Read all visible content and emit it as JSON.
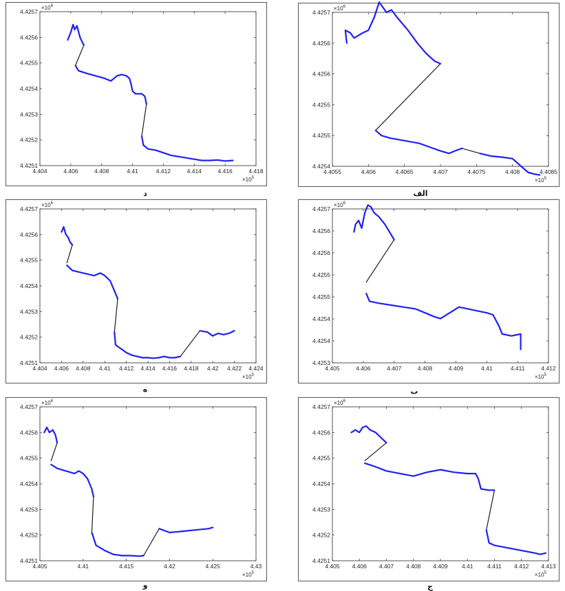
{
  "colors": {
    "track": "#1f1ff0",
    "gap": "#1a1a1a"
  },
  "panels": [
    {
      "caption": "الف",
      "x_exponent": "×10^5",
      "y_exponent": "×10^6",
      "x_ticks": [
        "4.4055",
        "4.406",
        "4.4065",
        "4.407",
        "4.4075",
        "4.408",
        "4.4085"
      ],
      "y_ticks": [
        "4.4254",
        "4.4255",
        "4.4255",
        "4.4256",
        "4.4256",
        "4.4257"
      ]
    },
    {
      "caption": "د",
      "x_exponent": "×10^5",
      "y_exponent": "×10^6",
      "x_ticks": [
        "4.404",
        "4.406",
        "4.408",
        "4.41",
        "4.412",
        "4.414",
        "4.416",
        "4.418"
      ],
      "y_ticks": [
        "4.4251",
        "4.4252",
        "4.4253",
        "4.4254",
        "4.4255",
        "4.4256",
        "4.4257"
      ]
    },
    {
      "caption": "ب",
      "x_exponent": "×10^5",
      "y_exponent": "×10^6",
      "x_ticks": [
        "4.405",
        "4.406",
        "4.407",
        "4.408",
        "4.409",
        "4.41",
        "4.411",
        "4.412"
      ],
      "y_ticks": [
        "4.4253",
        "4.4254",
        "4.4254",
        "4.4255",
        "4.4255",
        "4.4256",
        "4.4256",
        "4.4257"
      ]
    },
    {
      "caption": "ه",
      "x_exponent": "×10^5",
      "y_exponent": "×10^6",
      "x_ticks": [
        "4.404",
        "4.406",
        "4.408",
        "4.41",
        "4.412",
        "4.414",
        "4.416",
        "4.418",
        "4.42",
        "4.422",
        "4.424"
      ],
      "y_ticks": [
        "4.4251",
        "4.4252",
        "4.4253",
        "4.4254",
        "4.4255",
        "4.4256",
        "4.4257"
      ]
    },
    {
      "caption": "ج",
      "x_exponent": "×10^5",
      "y_exponent": "×10^6",
      "x_ticks": [
        "4.405",
        "4.406",
        "4.407",
        "4.408",
        "4.409",
        "4.41",
        "4.411",
        "4.412",
        "4.413"
      ],
      "y_ticks": [
        "4.4251",
        "4.4252",
        "4.4253",
        "4.4254",
        "4.4255",
        "4.4256",
        "4.4257"
      ]
    },
    {
      "caption": "و",
      "x_exponent": "×10^5",
      "y_exponent": "×10^6",
      "x_ticks": [
        "4.405",
        "4.41",
        "4.415",
        "4.42",
        "4.425",
        "4.43"
      ],
      "y_ticks": [
        "4.4251",
        "4.4252",
        "4.4253",
        "4.4254",
        "4.4255",
        "4.4256",
        "4.4257"
      ]
    }
  ],
  "chart_data": [
    {
      "type": "line",
      "panel_caption": "الف",
      "xlim": [
        4.4055,
        4.4085
      ],
      "ylim": [
        4.4254,
        4.4257
      ],
      "scale_x": 100000.0,
      "scale_y": 1000000.0,
      "series": [
        {
          "segments": [
            {
              "kind": "track",
              "x": [
                4.4057,
                4.40568,
                4.40575,
                4.4058,
                4.40592,
                4.406,
                4.40608,
                4.40615,
                4.4062,
                4.40625,
                4.40632,
                4.4064,
                4.40655,
                4.40668,
                4.4068,
                4.40692,
                4.407
              ],
              "y": [
                4.42564,
                4.425665,
                4.42566,
                4.42565,
                4.42566,
                4.425665,
                4.42569,
                4.42572,
                4.42571,
                4.4257,
                4.425705,
                4.42569,
                4.425665,
                4.42564,
                4.42562,
                4.425605,
                4.4256
              ]
            },
            {
              "kind": "gap",
              "x": [
                4.407,
                4.4061
              ],
              "y": [
                4.4256,
                4.42547
              ]
            },
            {
              "kind": "track",
              "x": [
                4.4061,
                4.40618,
                4.4063,
                4.4065,
                4.4067,
                4.4069,
                4.407,
                4.40712,
                4.4072,
                4.4073
              ],
              "y": [
                4.42547,
                4.42546,
                4.425455,
                4.42545,
                4.425445,
                4.425435,
                4.42543,
                4.425425,
                4.42543,
                4.425435
              ]
            },
            {
              "kind": "gap",
              "x": [
                4.4073,
                4.40755
              ],
              "y": [
                4.425435,
                4.425425
              ]
            },
            {
              "kind": "track",
              "x": [
                4.40755,
                4.4077,
                4.40785,
                4.408,
                4.40812,
                4.40822,
                4.4083,
                4.40838
              ],
              "y": [
                4.425425,
                4.42542,
                4.425418,
                4.425415,
                4.4254,
                4.425388,
                4.425385,
                4.425383
              ]
            }
          ]
        }
      ]
    },
    {
      "type": "line",
      "panel_caption": "د",
      "xlim": [
        4.404,
        4.418
      ],
      "ylim": [
        4.4251,
        4.4257
      ],
      "scale_x": 100000.0,
      "scale_y": 1000000.0,
      "series": [
        {
          "segments": [
            {
              "kind": "track",
              "x": [
                4.4058,
                4.406,
                4.40615,
                4.40625,
                4.4064,
                4.4066,
                4.40675,
                4.40685
              ],
              "y": [
                4.42559,
                4.42562,
                4.42565,
                4.42563,
                4.425645,
                4.4256,
                4.42558,
                4.42557
              ]
            },
            {
              "kind": "gap",
              "x": [
                4.40685,
                4.4063
              ],
              "y": [
                4.42557,
                4.42549
              ]
            },
            {
              "kind": "track",
              "x": [
                4.4063,
                4.4065,
                4.407,
                4.4076,
                4.4082,
                4.4086,
                4.409,
                4.4093,
                4.4096,
                4.4098,
                4.4099,
                4.41,
                4.4102,
                4.4106,
                4.4108,
                4.4109
              ],
              "y": [
                4.42549,
                4.42547,
                4.42546,
                4.42545,
                4.42544,
                4.42543,
                4.42545,
                4.425455,
                4.42545,
                4.42544,
                4.42542,
                4.42539,
                4.42538,
                4.42538,
                4.42537,
                4.42534
              ]
            },
            {
              "kind": "gap",
              "x": [
                4.4109,
                4.4106
              ],
              "y": [
                4.42534,
                4.425215
              ]
            },
            {
              "kind": "track",
              "x": [
                4.4106,
                4.4107,
                4.411,
                4.4115,
                4.412,
                4.4125,
                4.413,
                4.4135,
                4.414,
                4.4145,
                4.415,
                4.4155,
                4.416,
                4.4165
              ],
              "y": [
                4.425215,
                4.42518,
                4.425165,
                4.42516,
                4.42515,
                4.42514,
                4.425135,
                4.42513,
                4.425125,
                4.42512,
                4.42512,
                4.425122,
                4.425118,
                4.42512
              ]
            }
          ]
        }
      ]
    },
    {
      "type": "line",
      "panel_caption": "ب",
      "xlim": [
        4.405,
        4.412
      ],
      "ylim": [
        4.4253,
        4.4257
      ],
      "scale_x": 100000.0,
      "scale_y": 1000000.0,
      "series": [
        {
          "segments": [
            {
              "kind": "track",
              "x": [
                4.4057,
                4.40575,
                4.40585,
                4.40595,
                4.40605,
                4.40615,
                4.40625,
                4.40635,
                4.4065,
                4.4067,
                4.40685,
                4.407
              ],
              "y": [
                4.42564,
                4.42566,
                4.42567,
                4.42565,
                4.42569,
                4.42571,
                4.425705,
                4.42569,
                4.42568,
                4.42566,
                4.42564,
                4.42562
              ]
            },
            {
              "kind": "gap",
              "x": [
                4.407,
                4.4061
              ],
              "y": [
                4.42562,
                4.42551
              ]
            },
            {
              "kind": "track",
              "x": [
                4.4061,
                4.4062,
                4.4065,
                4.4069,
                4.4073,
                4.4077,
                4.408,
                4.4083,
                4.4085,
                4.4088,
                4.4091,
                4.4094,
                4.4097,
                4.41,
                4.4102,
                4.4104,
                4.4105,
                4.4108,
                4.4111,
                4.4111
              ],
              "y": [
                4.42548,
                4.42546,
                4.425455,
                4.42545,
                4.425445,
                4.42544,
                4.42543,
                4.42542,
                4.425415,
                4.42543,
                4.425445,
                4.42544,
                4.425435,
                4.42543,
                4.425425,
                4.425395,
                4.425375,
                4.42537,
                4.425375,
                4.425335
              ]
            }
          ]
        }
      ]
    },
    {
      "type": "line",
      "panel_caption": "ه",
      "xlim": [
        4.404,
        4.424
      ],
      "ylim": [
        4.4251,
        4.4257
      ],
      "scale_x": 100000.0,
      "scale_y": 1000000.0,
      "series": [
        {
          "segments": [
            {
              "kind": "track",
              "x": [
                4.406,
                4.4062,
                4.4064,
                4.4066,
                4.4068,
                4.407
              ],
              "y": [
                4.42561,
                4.42563,
                4.4256,
                4.42559,
                4.42557,
                4.42556
              ]
            },
            {
              "kind": "gap",
              "x": [
                4.407,
                4.4065
              ],
              "y": [
                4.42556,
                4.42549
              ]
            },
            {
              "kind": "track",
              "x": [
                4.4065,
                4.407,
                4.408,
                4.409,
                4.4096,
                4.41,
                4.4105,
                4.4108,
                4.411,
                4.4112
              ],
              "y": [
                4.42548,
                4.42546,
                4.42545,
                4.42544,
                4.42545,
                4.42544,
                4.42542,
                4.42539,
                4.42537,
                4.42535
              ]
            },
            {
              "kind": "gap",
              "x": [
                4.4112,
                4.4109
              ],
              "y": [
                4.42535,
                4.42522
              ]
            },
            {
              "kind": "track",
              "x": [
                4.4109,
                4.411,
                4.4115,
                4.412,
                4.4125,
                4.413,
                4.4135,
                4.414,
                4.4145,
                4.415,
                4.4155,
                4.416,
                4.4165,
                4.417
              ],
              "y": [
                4.42522,
                4.42517,
                4.425155,
                4.42514,
                4.42513,
                4.425125,
                4.42512,
                4.42512,
                4.425118,
                4.42512,
                4.425125,
                4.42512,
                4.42512,
                4.425125
              ]
            },
            {
              "kind": "gap",
              "x": [
                4.417,
                4.4188
              ],
              "y": [
                4.425125,
                4.425225
              ]
            },
            {
              "kind": "track",
              "x": [
                4.4188,
                4.4195,
                4.42,
                4.4205,
                4.421,
                4.4215,
                4.422
              ],
              "y": [
                4.425225,
                4.42522,
                4.425205,
                4.425215,
                4.42521,
                4.425215,
                4.425225
              ]
            }
          ]
        }
      ]
    },
    {
      "type": "line",
      "panel_caption": "ج",
      "xlim": [
        4.405,
        4.413
      ],
      "ylim": [
        4.4251,
        4.4257
      ],
      "scale_x": 100000.0,
      "scale_y": 1000000.0,
      "series": [
        {
          "segments": [
            {
              "kind": "track",
              "x": [
                4.4057,
                4.40585,
                4.406,
                4.40612,
                4.40625,
                4.4064,
                4.4066,
                4.4068,
                4.407
              ],
              "y": [
                4.4256,
                4.42561,
                4.4256,
                4.42562,
                4.425625,
                4.42561,
                4.4256,
                4.42558,
                4.42556
              ]
            },
            {
              "kind": "gap",
              "x": [
                4.407,
                4.4062
              ],
              "y": [
                4.42556,
                4.42549
              ]
            },
            {
              "kind": "track",
              "x": [
                4.4062,
                4.4065,
                4.407,
                4.4075,
                4.408,
                4.4085,
                4.409,
                4.4095,
                4.41,
                4.4103,
                4.4104,
                4.4105,
                4.4108,
                4.411
              ],
              "y": [
                4.42548,
                4.42547,
                4.42545,
                4.42544,
                4.42543,
                4.425445,
                4.425455,
                4.425445,
                4.42544,
                4.42544,
                4.42542,
                4.42538,
                4.425375,
                4.425375
              ]
            },
            {
              "kind": "gap",
              "x": [
                4.411,
                4.4107
              ],
              "y": [
                4.425375,
                4.42522
              ]
            },
            {
              "kind": "track",
              "x": [
                4.4107,
                4.4108,
                4.411,
                4.4115,
                4.412,
                4.4125,
                4.4127,
                4.4129
              ],
              "y": [
                4.42522,
                4.42517,
                4.42516,
                4.42515,
                4.42514,
                4.42513,
                4.425125,
                4.42513
              ]
            }
          ]
        }
      ]
    },
    {
      "type": "line",
      "panel_caption": "و",
      "xlim": [
        4.405,
        4.43
      ],
      "ylim": [
        4.4251,
        4.4257
      ],
      "scale_x": 100000.0,
      "scale_y": 1000000.0,
      "series": [
        {
          "segments": [
            {
              "kind": "track",
              "x": [
                4.4055,
                4.4058,
                4.4061,
                4.4065,
                4.4068,
                4.407
              ],
              "y": [
                4.4256,
                4.42562,
                4.4256,
                4.42561,
                4.42559,
                4.42556
              ]
            },
            {
              "kind": "gap",
              "x": [
                4.407,
                4.4063
              ],
              "y": [
                4.42556,
                4.42549
              ]
            },
            {
              "kind": "track",
              "x": [
                4.4063,
                4.407,
                4.408,
                4.409,
                4.4095,
                4.41,
                4.4105,
                4.411,
                4.4112
              ],
              "y": [
                4.425475,
                4.42546,
                4.42545,
                4.42544,
                4.42545,
                4.42544,
                4.42542,
                4.42538,
                4.42535
              ]
            },
            {
              "kind": "gap",
              "x": [
                4.4112,
                4.411
              ],
              "y": [
                4.42535,
                4.42521
              ]
            },
            {
              "kind": "track",
              "x": [
                4.411,
                4.4115,
                4.4125,
                4.4135,
                4.4145,
                4.4155,
                4.4165,
                4.417
              ],
              "y": [
                4.42521,
                4.42516,
                4.42514,
                4.425125,
                4.42512,
                4.42512,
                4.425118,
                4.42512
              ]
            },
            {
              "kind": "gap",
              "x": [
                4.417,
                4.4188
              ],
              "y": [
                4.42512,
                4.425225
              ]
            },
            {
              "kind": "track",
              "x": [
                4.4188,
                4.42,
                4.4215,
                4.423,
                4.4245,
                4.425
              ],
              "y": [
                4.425225,
                4.42521,
                4.425215,
                4.42522,
                4.425225,
                4.42523
              ]
            }
          ]
        }
      ]
    }
  ]
}
